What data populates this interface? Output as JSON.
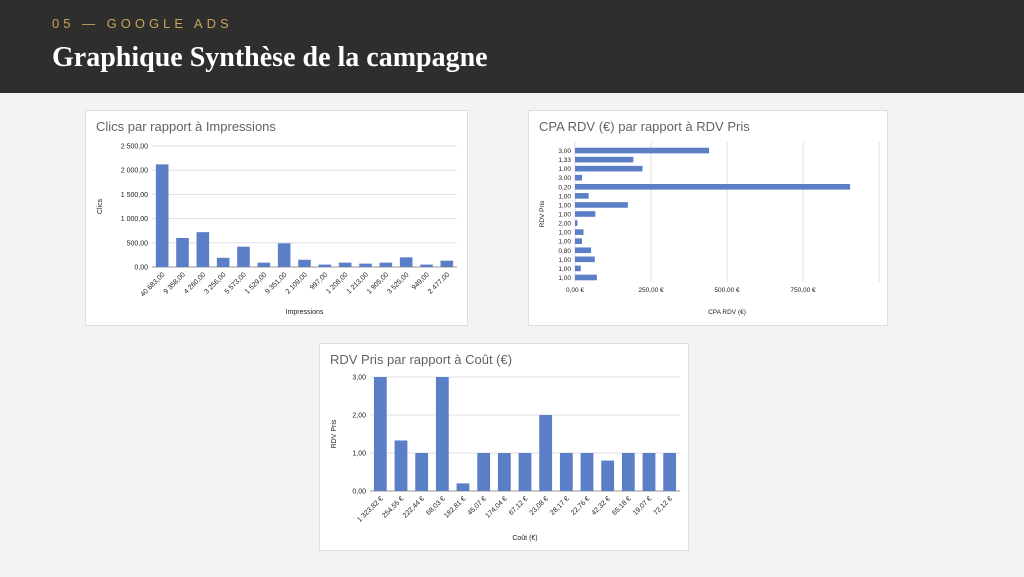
{
  "header": {
    "kicker": "05 — GOOGLE ADS",
    "title": "Graphique Synthèse de la campagne"
  },
  "colors": {
    "header_bg": "#2e2e2c",
    "kicker": "#c9a25e",
    "bar": "#5b7fc7",
    "grid": "#e0e0e0"
  },
  "chart_data": [
    {
      "type": "bar",
      "title": "Clics par rapport à Impressions",
      "xlabel": "Impressions",
      "ylabel": "Clics",
      "categories": [
        "40 683,00",
        "9 358,00",
        "4 260,00",
        "3 256,00",
        "5 573,00",
        "1 529,00",
        "9 351,00",
        "2 109,00",
        "997,00",
        "1 208,00",
        "1 213,00",
        "1 905,00",
        "3 525,00",
        "949,00",
        "2 477,00"
      ],
      "values": [
        2120,
        600,
        720,
        190,
        420,
        90,
        490,
        150,
        50,
        90,
        70,
        90,
        200,
        50,
        130
      ],
      "yticks": [
        "0,00",
        "500,00",
        "1 000,00",
        "1 500,00",
        "2 000,00",
        "2 500,00"
      ],
      "ylim": [
        0,
        2500
      ],
      "grid": true
    },
    {
      "type": "bar",
      "orientation": "horizontal",
      "title": "CPA RDV (€) par rapport à RDV Pris",
      "xlabel": "CPA RDV (€)",
      "ylabel": "RDV Pris",
      "categories": [
        "3,00",
        "1,33",
        "1,00",
        "3,00",
        "0,20",
        "1,00",
        "1,00",
        "1,00",
        "2,00",
        "1,00",
        "1,00",
        "0,80",
        "1,00",
        "1,00",
        "1,00"
      ],
      "values": [
        441,
        192,
        222,
        23,
        905,
        45,
        174,
        67,
        8,
        28,
        23,
        53,
        65,
        19,
        72
      ],
      "xticks": [
        "0,00 €",
        "250,00 €",
        "500,00 €",
        "750,00 €"
      ],
      "xlim": [
        0,
        1000
      ],
      "grid": true
    },
    {
      "type": "bar",
      "title": "RDV Pris par rapport à Coût (€)",
      "xlabel": "Coût (€)",
      "ylabel": "RDV Pris",
      "categories": [
        "1 323,82 €",
        "254,55 €",
        "222,44 €",
        "68,03 €",
        "182,81 €",
        "45,07 €",
        "174,04 €",
        "67,12 €",
        "23,08 €",
        "28,17 €",
        "22,76 €",
        "42,32 €",
        "65,18 €",
        "19,07 €",
        "72,12 €"
      ],
      "values": [
        3,
        1.33,
        1,
        3,
        0.2,
        1,
        1,
        1,
        2,
        1,
        1,
        0.8,
        1,
        1,
        1
      ],
      "yticks": [
        "0,00",
        "1,00",
        "2,00",
        "3,00"
      ],
      "ylim": [
        0,
        3
      ],
      "grid": true
    }
  ]
}
